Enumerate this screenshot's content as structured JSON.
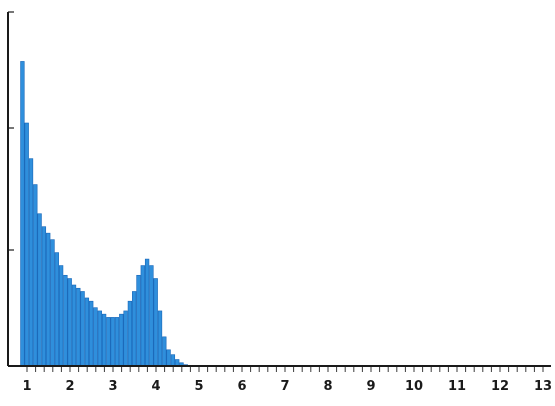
{
  "chart_data": {
    "type": "bar",
    "title": "",
    "xlabel": "",
    "ylabel": "",
    "x_ticks": [
      "1",
      "2",
      "3",
      "4",
      "5",
      "6",
      "7",
      "8",
      "9",
      "10",
      "11",
      "12",
      "13"
    ],
    "xlim": [
      0.9,
      13
    ],
    "ylim": [
      0,
      1
    ],
    "y_ticks_labeled": false,
    "bar_color": "#2f8fdc",
    "bar_edge_color": "#1565b8",
    "grid": false,
    "bins_start": 0.9,
    "bin_width": 0.1,
    "values": [
      0.94,
      0.75,
      0.64,
      0.56,
      0.47,
      0.43,
      0.41,
      0.39,
      0.35,
      0.31,
      0.28,
      0.27,
      0.25,
      0.24,
      0.23,
      0.21,
      0.2,
      0.18,
      0.17,
      0.16,
      0.15,
      0.15,
      0.15,
      0.16,
      0.17,
      0.2,
      0.23,
      0.28,
      0.31,
      0.33,
      0.31,
      0.27,
      0.17,
      0.09,
      0.05,
      0.035,
      0.02,
      0.01,
      0.004,
      0.002,
      0.001
    ]
  }
}
